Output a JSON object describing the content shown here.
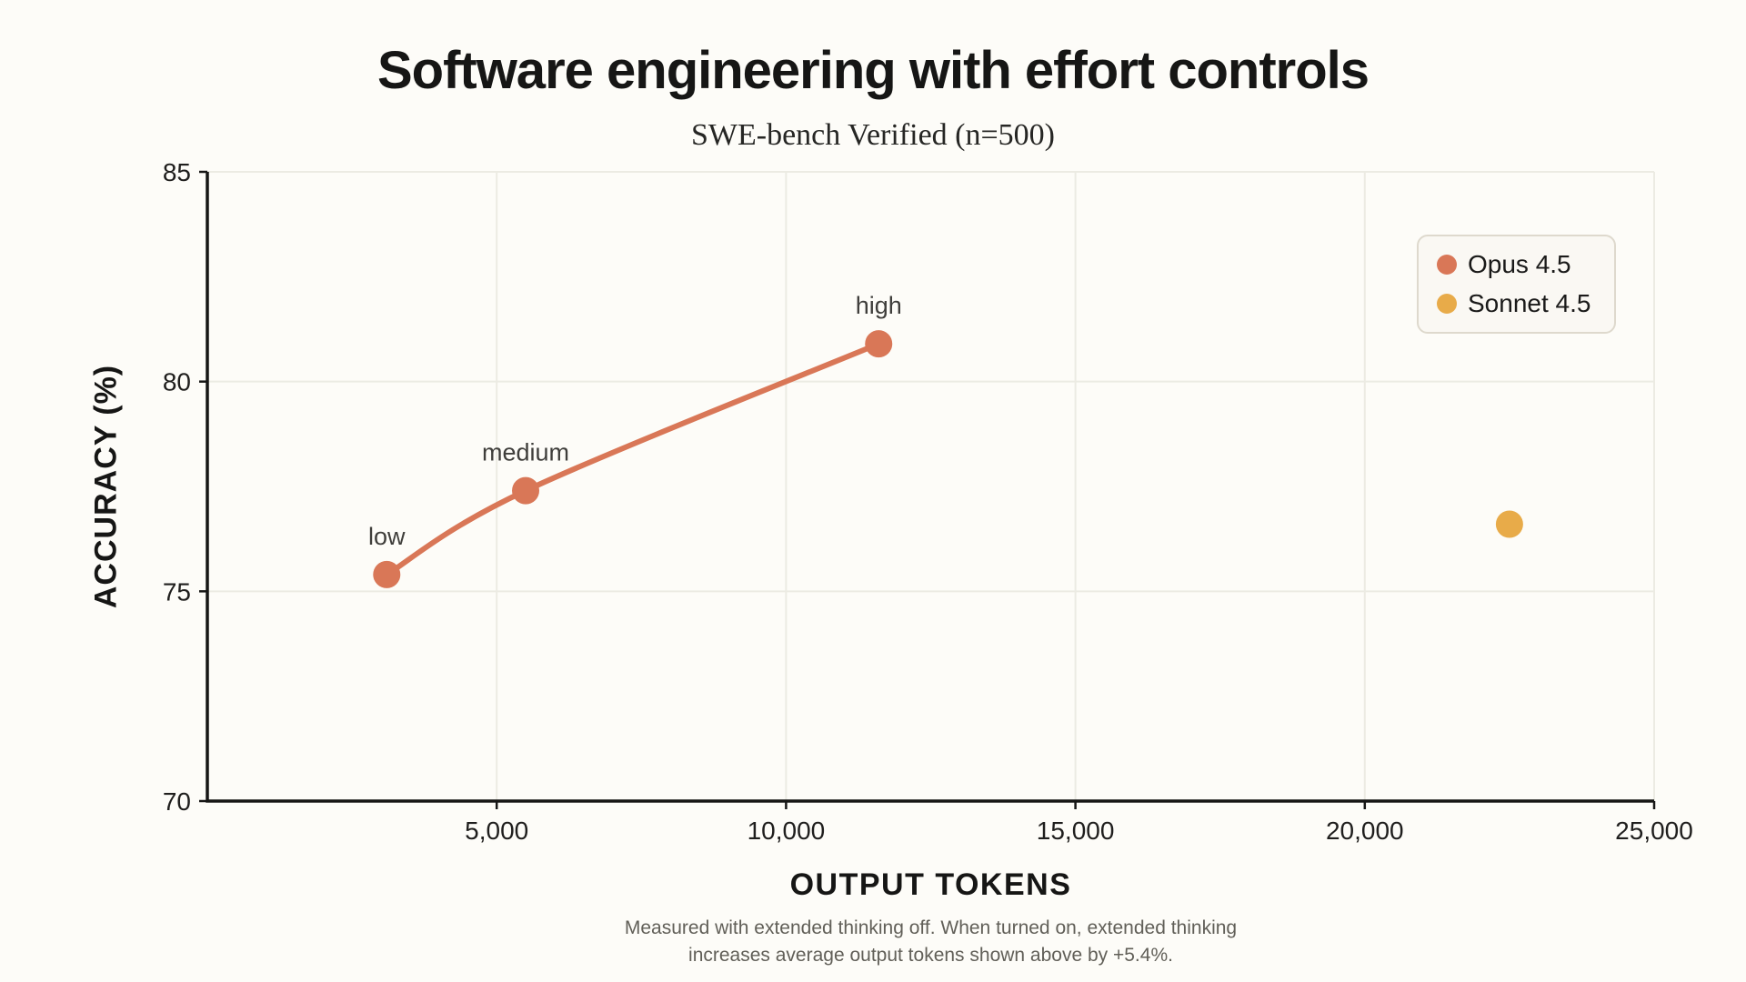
{
  "page": {
    "background": "#fdfcf8"
  },
  "chart_data": {
    "type": "line",
    "title": "Software engineering with effort controls",
    "subtitle": "SWE-bench Verified (n=500)",
    "xlabel": "OUTPUT TOKENS",
    "ylabel": "ACCURACY (%)",
    "xlim": [
      0,
      25000
    ],
    "ylim": [
      70,
      85
    ],
    "x_ticks": [
      {
        "value": 5000,
        "label": "5,000"
      },
      {
        "value": 10000,
        "label": "10,000"
      },
      {
        "value": 15000,
        "label": "15,000"
      },
      {
        "value": 20000,
        "label": "20,000"
      },
      {
        "value": 25000,
        "label": "25,000"
      }
    ],
    "y_ticks": [
      {
        "value": 70,
        "label": "70"
      },
      {
        "value": 75,
        "label": "75"
      },
      {
        "value": 80,
        "label": "80"
      },
      {
        "value": 85,
        "label": "85"
      }
    ],
    "grid": {
      "color": "#ecebe3",
      "vertical_at": [
        5000,
        10000,
        15000,
        20000,
        25000
      ],
      "horizontal_at": [
        75,
        80,
        85
      ]
    },
    "axis_color": "#161615",
    "tick_label_color": "#1f1e1d",
    "point_label_color": "#3f3e3b",
    "series": [
      {
        "name": "Opus 4.5",
        "color": "#d97757",
        "line": true,
        "points": [
          {
            "x": 3100,
            "y": 75.4,
            "label": "low"
          },
          {
            "x": 5500,
            "y": 77.4,
            "label": "medium"
          },
          {
            "x": 11600,
            "y": 80.9,
            "label": "high"
          }
        ]
      },
      {
        "name": "Sonnet 4.5",
        "color": "#e8ab49",
        "line": false,
        "points": [
          {
            "x": 22500,
            "y": 76.6,
            "label": ""
          }
        ]
      }
    ],
    "legend_position": "top-right",
    "note": {
      "line1": "Measured with extended thinking off. When turned on, extended thinking",
      "line2": "increases average output tokens shown above by +5.4%."
    }
  }
}
